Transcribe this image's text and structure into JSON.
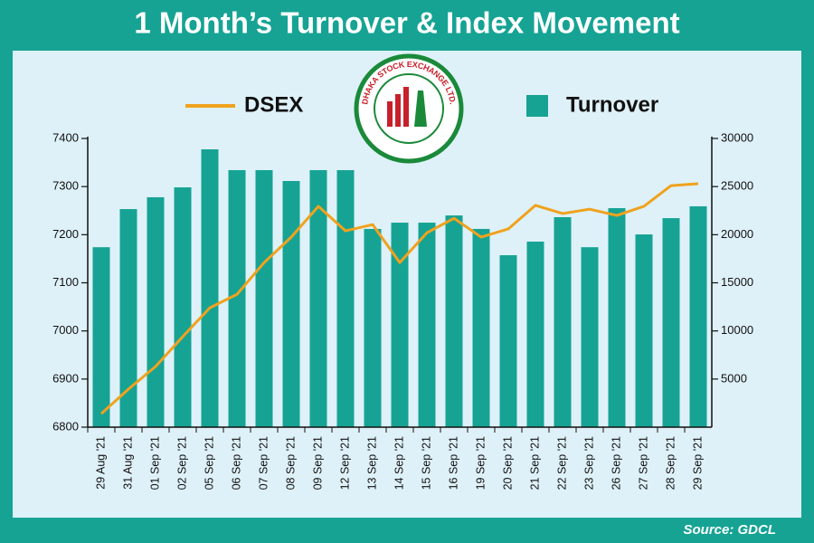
{
  "chart_data": {
    "type": "combo",
    "title": "1 Month’s Turnover & Index Movement",
    "logo_text": "DHAKA STOCK EXCHANGE LTD.",
    "source": "Source: GDCL",
    "categories": [
      "29 Aug '21",
      "31 Aug '21",
      "01 Sep '21",
      "02 Sep '21",
      "05 Sep '21",
      "06 Sep '21",
      "07 Sep '21",
      "08 Sep '21",
      "09 Sep '21",
      "12 Sep '21",
      "13 Sep '21",
      "14 Sep '21",
      "15 Sep '21",
      "16 Sep '21",
      "19 Sep '21",
      "20 Sep '21",
      "21 Sep '21",
      "22 Sep '21",
      "23 Sep '21",
      "26 Sep '21",
      "27 Sep '21",
      "28 Sep '21",
      "29 Sep '21"
    ],
    "series": [
      {
        "name": "DSEX",
        "type": "line",
        "color": "#f0a21e",
        "values": [
          6828,
          6879,
          6926,
          6988,
          7048,
          7076,
          7142,
          7195,
          7259,
          7208,
          7221,
          7142,
          7204,
          7234,
          7195,
          7212,
          7261,
          7244,
          7253,
          7240,
          7259,
          7302,
          7306
        ]
      },
      {
        "name": "Turnover",
        "type": "bar",
        "axis": "y2",
        "color": "#16a394",
        "values": [
          18700,
          22660,
          23890,
          24920,
          28870,
          26710,
          26710,
          25580,
          26710,
          26710,
          20600,
          21250,
          21250,
          22000,
          20600,
          17870,
          19280,
          21820,
          18700,
          22760,
          20030,
          21720,
          22950
        ]
      }
    ],
    "ylim": [
      6800,
      7400
    ],
    "yticks": [
      6800,
      6900,
      7000,
      7100,
      7200,
      7300,
      7400
    ],
    "y2lim": [
      0,
      30000
    ],
    "y2ticks": [
      5000,
      10000,
      15000,
      20000,
      25000,
      30000
    ]
  }
}
